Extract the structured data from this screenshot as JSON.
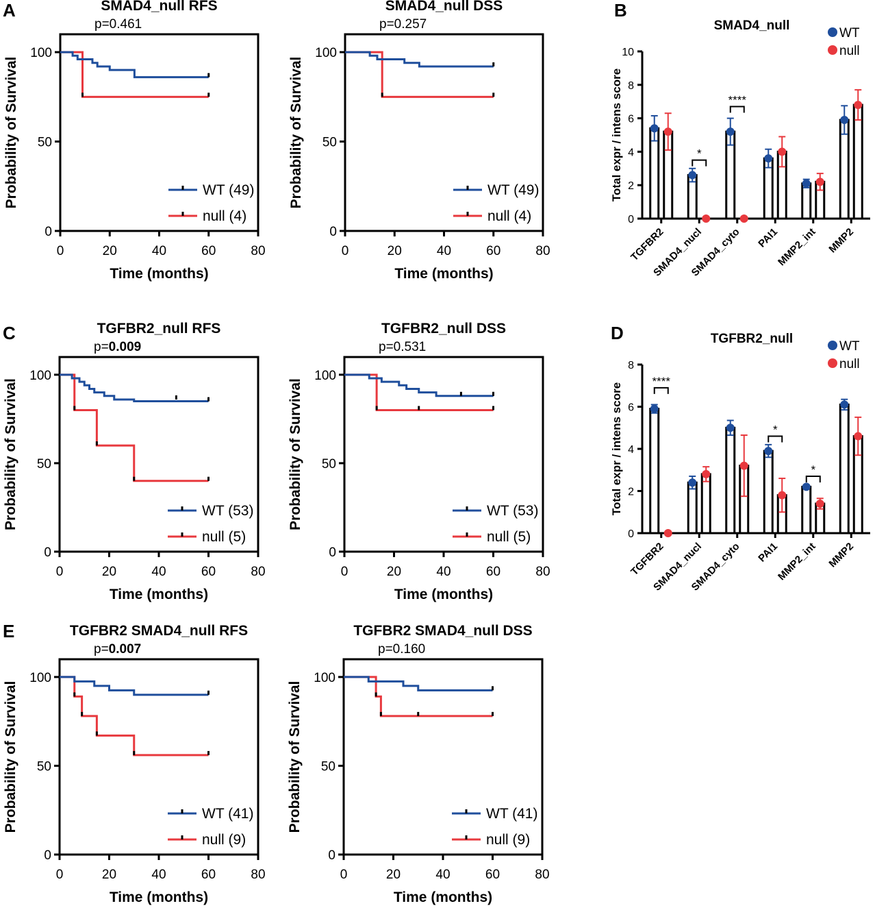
{
  "figure": {
    "panel_letters": [
      "A",
      "B",
      "C",
      "D",
      "E"
    ]
  },
  "colors": {
    "wt": "#1f4e9c",
    "null": "#e8393e",
    "axis": "#000000",
    "bar": "#000000"
  },
  "chart_data": [
    {
      "id": "A-left",
      "type": "line",
      "subtype": "kaplan-meier",
      "title": "SMAD4_null RFS",
      "pvalue_prefix": "p=",
      "pvalue": "0.461",
      "pvalue_bold": false,
      "xlabel": "Time (months)",
      "ylabel": "Probability of Survival",
      "xlim": [
        0,
        80
      ],
      "ylim": [
        0,
        110
      ],
      "xticks": [
        "0",
        "20",
        "40",
        "60",
        "80"
      ],
      "yticks": [
        "0",
        "50",
        "100"
      ],
      "legend_position": "bottom-right",
      "series": [
        {
          "name": "WT",
          "label": "WT (49)",
          "color": "#1f4e9c",
          "steps": [
            [
              0,
              100
            ],
            [
              5,
              98
            ],
            [
              7,
              96
            ],
            [
              13,
              94
            ],
            [
              15,
              92
            ],
            [
              20,
              90
            ],
            [
              30,
              86
            ],
            [
              60,
              86
            ]
          ],
          "censor": [
            [
              60,
              86
            ]
          ]
        },
        {
          "name": "null",
          "label": "null (4)",
          "color": "#e8393e",
          "steps": [
            [
              0,
              100
            ],
            [
              9,
              75
            ],
            [
              60,
              75
            ]
          ],
          "censor": [
            [
              9,
              75
            ],
            [
              60,
              75
            ]
          ]
        }
      ]
    },
    {
      "id": "A-right",
      "type": "line",
      "subtype": "kaplan-meier",
      "title": "SMAD4_null DSS",
      "pvalue_prefix": "p=",
      "pvalue": "0.257",
      "pvalue_bold": false,
      "xlabel": "Time (months)",
      "ylabel": "Probability of Survival",
      "xlim": [
        0,
        80
      ],
      "ylim": [
        0,
        110
      ],
      "xticks": [
        "0",
        "20",
        "40",
        "60",
        "80"
      ],
      "yticks": [
        "0",
        "50",
        "100"
      ],
      "legend_position": "bottom-right",
      "series": [
        {
          "name": "WT",
          "label": "WT (49)",
          "color": "#1f4e9c",
          "steps": [
            [
              0,
              100
            ],
            [
              10,
              98
            ],
            [
              13,
              96
            ],
            [
              24,
              94
            ],
            [
              30,
              92
            ],
            [
              60,
              92
            ]
          ],
          "censor": [
            [
              60,
              92
            ]
          ]
        },
        {
          "name": "null",
          "label": "null (4)",
          "color": "#e8393e",
          "steps": [
            [
              0,
              100
            ],
            [
              15,
              75
            ],
            [
              60,
              75
            ]
          ],
          "censor": [
            [
              15,
              75
            ],
            [
              60,
              75
            ]
          ]
        }
      ]
    },
    {
      "id": "B",
      "type": "bar",
      "title": "SMAD4_null",
      "ylabel": "Total expr / intens score",
      "ylim": [
        0,
        10
      ],
      "yticks": [
        "0",
        "2",
        "4",
        "6",
        "8",
        "10"
      ],
      "categories": [
        "TGFBR2",
        "SMAD4_nucl",
        "SMAD4_cyto",
        "PAI1",
        "MMP2_int",
        "MMP2"
      ],
      "legend_position": "top-right",
      "series": [
        {
          "name": "WT",
          "color": "#1f4e9c",
          "values": [
            5.4,
            2.6,
            5.2,
            3.6,
            2.1,
            5.9
          ],
          "errors": [
            0.75,
            0.4,
            0.8,
            0.55,
            0.25,
            0.85
          ]
        },
        {
          "name": "null",
          "color": "#e8393e",
          "values": [
            5.2,
            0.0,
            0.0,
            4.0,
            2.2,
            6.8
          ],
          "errors": [
            1.1,
            0,
            0,
            0.9,
            0.5,
            0.9
          ]
        }
      ],
      "significance": [
        {
          "category": "SMAD4_nucl",
          "label": "*",
          "y": 3.5
        },
        {
          "category": "SMAD4_cyto",
          "label": "****",
          "y": 6.7
        }
      ]
    },
    {
      "id": "C-left",
      "type": "line",
      "subtype": "kaplan-meier",
      "title": "TGFBR2_null RFS",
      "pvalue_prefix": "p=",
      "pvalue": "0.009",
      "pvalue_bold": true,
      "xlabel": "Time (months)",
      "ylabel": "Probability of  Survival",
      "xlim": [
        0,
        80
      ],
      "ylim": [
        0,
        110
      ],
      "xticks": [
        "0",
        "20",
        "40",
        "60",
        "80"
      ],
      "yticks": [
        "0",
        "50",
        "100"
      ],
      "legend_position": "bottom-right",
      "series": [
        {
          "name": "WT",
          "label": "WT (53)",
          "color": "#1f4e9c",
          "steps": [
            [
              0,
              100
            ],
            [
              5,
              98
            ],
            [
              8,
              96
            ],
            [
              10,
              94
            ],
            [
              12,
              92
            ],
            [
              14,
              90
            ],
            [
              18,
              88
            ],
            [
              22,
              86
            ],
            [
              30,
              85
            ],
            [
              60,
              85
            ]
          ],
          "censor": [
            [
              47,
              86
            ],
            [
              60,
              85
            ]
          ]
        },
        {
          "name": "null",
          "label": "null (5)",
          "color": "#e8393e",
          "steps": [
            [
              0,
              100
            ],
            [
              6,
              80
            ],
            [
              15,
              60
            ],
            [
              30,
              40
            ],
            [
              60,
              40
            ]
          ],
          "censor": [
            [
              6,
              80
            ],
            [
              15,
              60
            ],
            [
              30,
              40
            ],
            [
              60,
              40
            ]
          ]
        }
      ]
    },
    {
      "id": "C-right",
      "type": "line",
      "subtype": "kaplan-meier",
      "title": "TGFBR2_null DSS",
      "pvalue_prefix": "p=",
      "pvalue": "0.531",
      "pvalue_bold": false,
      "xlabel": "Time (months)",
      "ylabel": "Probability of Survival",
      "xlim": [
        0,
        80
      ],
      "ylim": [
        0,
        110
      ],
      "xticks": [
        "0",
        "20",
        "40",
        "60",
        "80"
      ],
      "yticks": [
        "0",
        "50",
        "100"
      ],
      "legend_position": "bottom-right",
      "series": [
        {
          "name": "WT",
          "label": "WT (53)",
          "color": "#1f4e9c",
          "steps": [
            [
              0,
              100
            ],
            [
              10,
              98
            ],
            [
              15,
              96
            ],
            [
              22,
              94
            ],
            [
              25,
              92
            ],
            [
              30,
              90
            ],
            [
              37,
              88
            ],
            [
              60,
              88
            ]
          ],
          "censor": [
            [
              47,
              88
            ],
            [
              60,
              88
            ]
          ]
        },
        {
          "name": "null",
          "label": "null (5)",
          "color": "#e8393e",
          "steps": [
            [
              0,
              100
            ],
            [
              13,
              80
            ],
            [
              60,
              80
            ]
          ],
          "censor": [
            [
              13,
              80
            ],
            [
              30,
              80
            ],
            [
              60,
              80
            ]
          ]
        }
      ]
    },
    {
      "id": "D",
      "type": "bar",
      "title": "TGFBR2_null",
      "ylabel": "Total expr / intens score",
      "ylim": [
        0,
        8
      ],
      "yticks": [
        "0",
        "2",
        "4",
        "6",
        "8"
      ],
      "categories": [
        "TGFBR2",
        "SMAD4_nucl",
        "SMAD4_cyto",
        "PAI1",
        "MMP2_int",
        "MMP2"
      ],
      "legend_position": "top-right",
      "series": [
        {
          "name": "WT",
          "color": "#1f4e9c",
          "values": [
            5.9,
            2.4,
            5.0,
            3.9,
            2.2,
            6.1
          ],
          "errors": [
            0.2,
            0.3,
            0.35,
            0.3,
            0.08,
            0.25
          ]
        },
        {
          "name": "null",
          "color": "#e8393e",
          "values": [
            0.0,
            2.8,
            3.2,
            1.8,
            1.4,
            4.6
          ],
          "errors": [
            0,
            0.35,
            1.45,
            0.8,
            0.25,
            0.9
          ]
        }
      ],
      "significance": [
        {
          "category": "TGFBR2",
          "label": "****",
          "y": 6.9
        },
        {
          "category": "PAI1",
          "label": "*",
          "y": 4.6
        },
        {
          "category": "MMP2_int",
          "label": "*",
          "y": 2.7
        }
      ]
    },
    {
      "id": "E-left",
      "type": "line",
      "subtype": "kaplan-meier",
      "title": "TGFBR2 SMAD4_null RFS",
      "pvalue_prefix": "p=",
      "pvalue": "0.007",
      "pvalue_bold": true,
      "xlabel": "Time (months)",
      "ylabel": "Probability of Survival",
      "xlim": [
        0,
        80
      ],
      "ylim": [
        0,
        110
      ],
      "xticks": [
        "0",
        "20",
        "40",
        "60",
        "80"
      ],
      "yticks": [
        "0",
        "50",
        "100"
      ],
      "legend_position": "bottom-right",
      "series": [
        {
          "name": "WT",
          "label": "WT (41)",
          "color": "#1f4e9c",
          "steps": [
            [
              0,
              100
            ],
            [
              6,
              97.5
            ],
            [
              14,
              95
            ],
            [
              20,
              92.5
            ],
            [
              30,
              90
            ],
            [
              60,
              90
            ]
          ],
          "censor": [
            [
              60,
              90
            ]
          ]
        },
        {
          "name": "null",
          "label": "null (9)",
          "color": "#e8393e",
          "steps": [
            [
              0,
              100
            ],
            [
              6,
              89
            ],
            [
              9,
              78
            ],
            [
              15,
              67
            ],
            [
              30,
              56
            ],
            [
              60,
              56
            ]
          ],
          "censor": [
            [
              6,
              89
            ],
            [
              9,
              78
            ],
            [
              15,
              67
            ],
            [
              30,
              56
            ],
            [
              60,
              56
            ]
          ]
        }
      ]
    },
    {
      "id": "E-right",
      "type": "line",
      "subtype": "kaplan-meier",
      "title": "TGFBR2 SMAD4_null DSS",
      "pvalue_prefix": "p=",
      "pvalue": "0.160",
      "pvalue_bold": false,
      "xlabel": "Time (months)",
      "ylabel": "Probability of Survival",
      "xlim": [
        0,
        80
      ],
      "ylim": [
        0,
        110
      ],
      "xticks": [
        "0",
        "20",
        "40",
        "60",
        "80"
      ],
      "yticks": [
        "0",
        "50",
        "100"
      ],
      "legend_position": "bottom-right",
      "series": [
        {
          "name": "WT",
          "label": "WT (41)",
          "color": "#1f4e9c",
          "steps": [
            [
              0,
              100
            ],
            [
              10,
              97.5
            ],
            [
              24,
              95
            ],
            [
              30,
              92.5
            ],
            [
              60,
              92.5
            ]
          ],
          "censor": [
            [
              60,
              92.5
            ]
          ]
        },
        {
          "name": "null",
          "label": "null (9)",
          "color": "#e8393e",
          "steps": [
            [
              0,
              100
            ],
            [
              13,
              89
            ],
            [
              15,
              78
            ],
            [
              60,
              78
            ]
          ],
          "censor": [
            [
              13,
              89
            ],
            [
              15,
              78
            ],
            [
              30,
              78
            ],
            [
              60,
              78
            ]
          ]
        }
      ]
    }
  ]
}
